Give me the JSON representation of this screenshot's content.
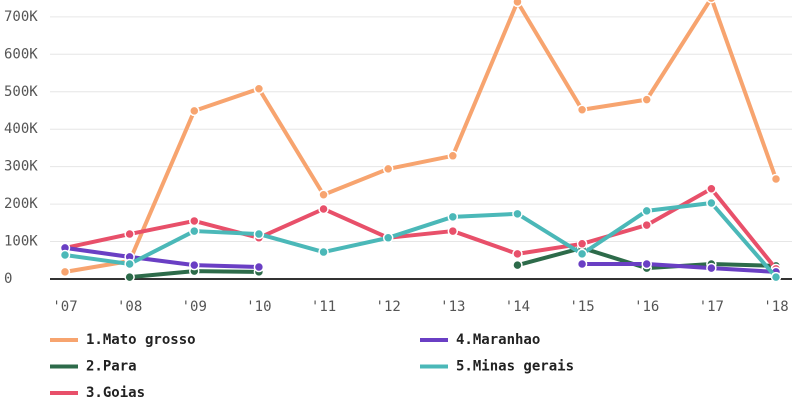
{
  "chart_data": {
    "type": "line",
    "categories": [
      "'07",
      "'08",
      "'09",
      "'10",
      "'11",
      "'12",
      "'13",
      "'14",
      "'15",
      "'16",
      "'17",
      "'18"
    ],
    "series": [
      {
        "name": "1.Mato grosso",
        "color": "#f7a46f",
        "values": [
          19000,
          48000,
          449000,
          508000,
          225000,
          294000,
          329000,
          740000,
          452000,
          479000,
          750000,
          267000
        ]
      },
      {
        "name": "2.Para",
        "color": "#2d6b4a",
        "values": [
          null,
          5000,
          21000,
          19000,
          null,
          null,
          null,
          37000,
          83000,
          29000,
          40000,
          35000
        ]
      },
      {
        "name": "3.Goias",
        "color": "#e8506a",
        "values": [
          83000,
          120000,
          155000,
          110000,
          187000,
          110000,
          128000,
          67000,
          94000,
          144000,
          241000,
          27000
        ]
      },
      {
        "name": "4.Maranhao",
        "color": "#6a3fc4",
        "values": [
          83000,
          59000,
          37000,
          32000,
          null,
          null,
          null,
          null,
          40000,
          40000,
          29000,
          19000
        ]
      },
      {
        "name": "5.Minas gerais",
        "color": "#4bb8b8",
        "values": [
          64000,
          40000,
          128000,
          120000,
          72000,
          110000,
          166000,
          174000,
          67000,
          182000,
          203000,
          5000
        ]
      }
    ],
    "ylim": [
      0,
      745000
    ],
    "yticks": [
      0,
      {
        "value": 100000,
        "label": "100K"
      },
      {
        "value": 200000,
        "label": "200K"
      },
      {
        "value": 300000,
        "label": "300K"
      },
      {
        "value": 400000,
        "label": "400K"
      },
      {
        "value": 500000,
        "label": "500K"
      },
      {
        "value": 600000,
        "label": "600K"
      },
      {
        "value": 700000,
        "label": "700K"
      }
    ],
    "grid": true
  }
}
